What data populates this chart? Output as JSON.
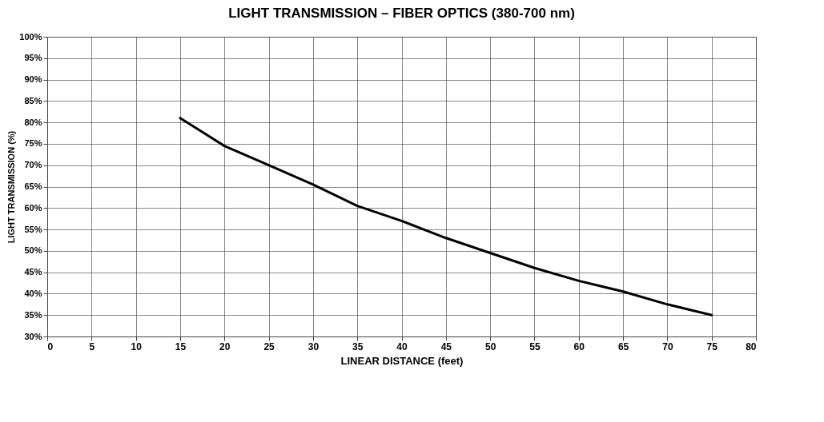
{
  "chart_data": {
    "type": "line",
    "title": "LIGHT TRANSMISSION – FIBER OPTICS (380-700 nm)",
    "xlabel": "LINEAR DISTANCE (feet)",
    "ylabel": "LIGHT TRANSMISSION (%)",
    "x": [
      15,
      20,
      25,
      30,
      35,
      40,
      45,
      50,
      55,
      60,
      65,
      70,
      75
    ],
    "series": [
      {
        "color": "#000000",
        "values": [
          81,
          74.5,
          70,
          65.5,
          60.5,
          57,
          53,
          49.5,
          46,
          43,
          40.5,
          37.5,
          35
        ]
      }
    ],
    "xlim": [
      0,
      80
    ],
    "xticks": [
      0,
      5,
      10,
      15,
      20,
      25,
      30,
      35,
      40,
      45,
      50,
      55,
      60,
      65,
      70,
      75,
      80
    ],
    "ylim": [
      30,
      100
    ],
    "yticks": [
      {
        "value": 30,
        "label": "30%"
      },
      {
        "value": 35,
        "label": "35%"
      },
      {
        "value": 40,
        "label": "40%"
      },
      {
        "value": 45,
        "label": "45%"
      },
      {
        "value": 50,
        "label": "50%"
      },
      {
        "value": 55,
        "label": "55%"
      },
      {
        "value": 60,
        "label": "60%"
      },
      {
        "value": 65,
        "label": "65%"
      },
      {
        "value": 70,
        "label": "70%"
      },
      {
        "value": 75,
        "label": "75%"
      },
      {
        "value": 80,
        "label": "80%"
      },
      {
        "value": 85,
        "label": "85%"
      },
      {
        "value": 90,
        "label": "90%"
      },
      {
        "value": 95,
        "label": "95%"
      },
      {
        "value": 100,
        "label": "100%"
      }
    ],
    "grid": true,
    "marker": "none",
    "line_style": "solid"
  }
}
